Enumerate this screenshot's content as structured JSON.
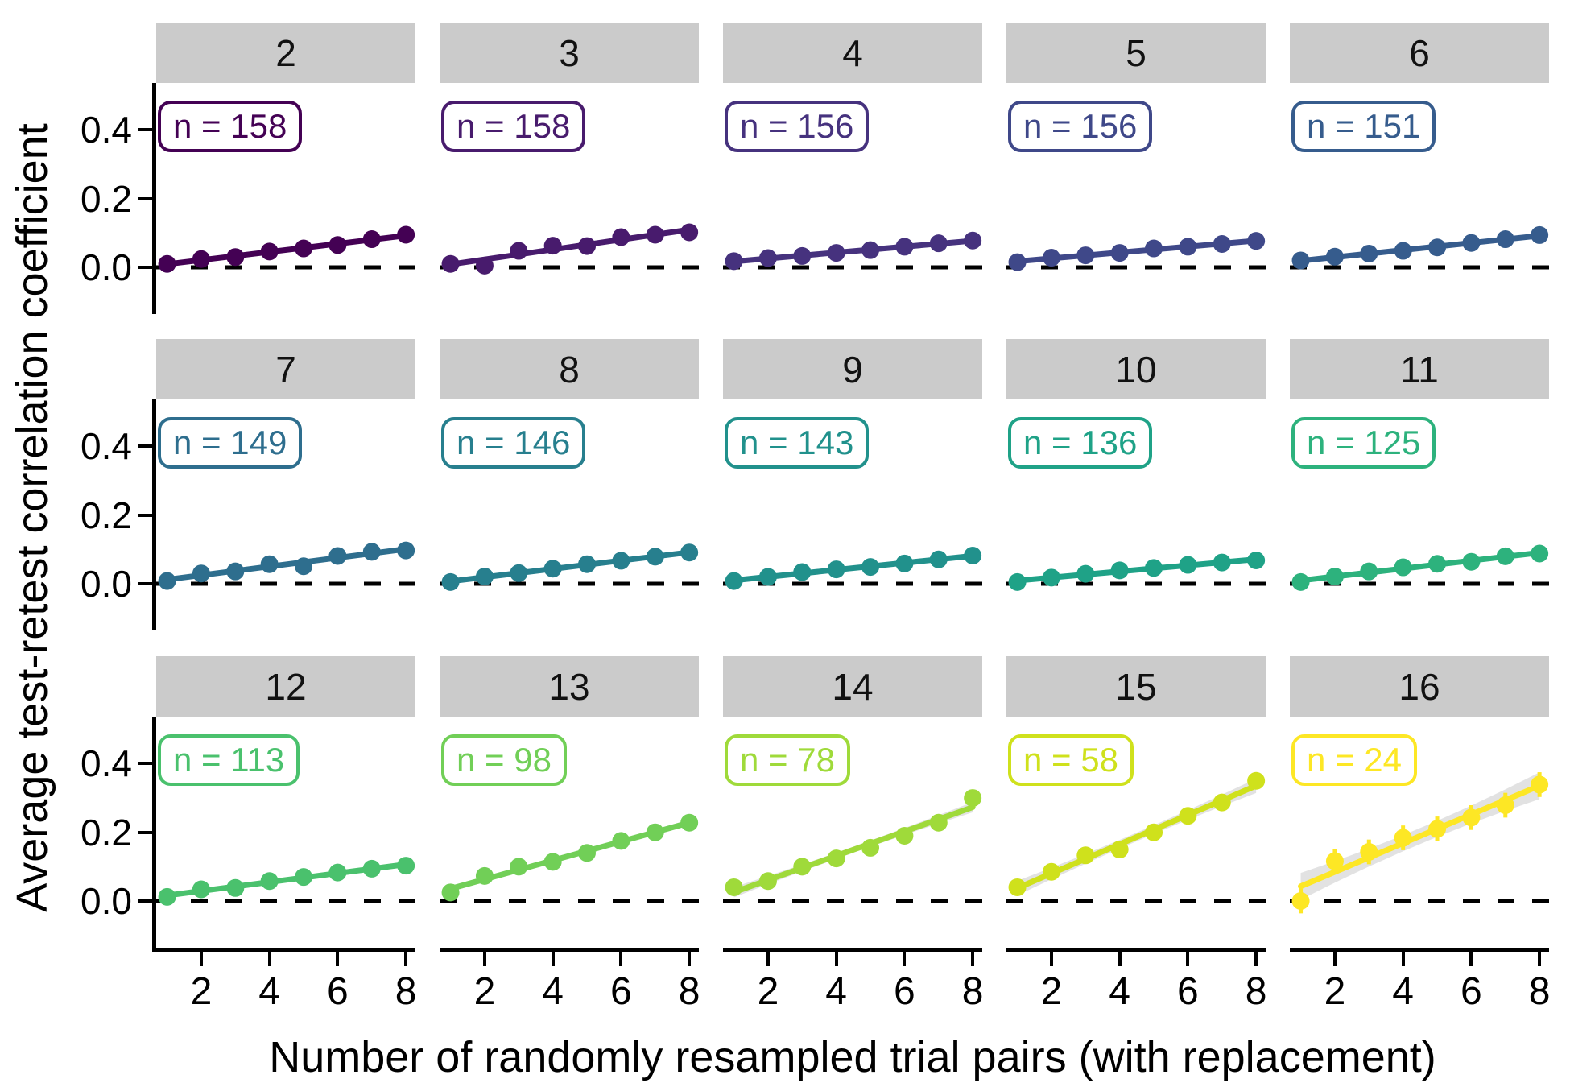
{
  "figure": {
    "y_axis_title": "Average test-retest correlation coefficient",
    "x_axis_title": "Number of randomly resampled trial pairs (with replacement)",
    "strip_bg": "#CBCBCB",
    "zero_line_color": "#000000",
    "ribbon_color": "#DBDBDB"
  },
  "chart_data": {
    "type": "scatter",
    "title": "",
    "xlabel": "Number of randomly resampled trial pairs (with replacement)",
    "ylabel": "Average test-retest correlation coefficient",
    "x": [
      1,
      2,
      3,
      4,
      5,
      6,
      7,
      8
    ],
    "x_ticks": [
      2,
      4,
      6,
      8
    ],
    "x_tick_labels": [
      "2",
      "4",
      "6",
      "8"
    ],
    "y_ticks": [
      0.0,
      0.2,
      0.4
    ],
    "y_tick_labels": [
      "0.0",
      "0.2",
      "0.4"
    ],
    "x_range": [
      0.68,
      8.28
    ],
    "y_range": [
      -0.136,
      0.537
    ],
    "grid": false,
    "zero_reference_line": 0.0,
    "panels": [
      {
        "facet": "2",
        "n": 158,
        "n_label": "n = 158",
        "color": "#440154",
        "y": [
          0.01,
          0.024,
          0.03,
          0.046,
          0.055,
          0.065,
          0.082,
          0.095
        ],
        "se": 0.005,
        "ribbon": 0
      },
      {
        "facet": "3",
        "n": 158,
        "n_label": "n = 158",
        "color": "#481B6D",
        "y": [
          0.01,
          0.005,
          0.048,
          0.063,
          0.062,
          0.088,
          0.095,
          0.102
        ],
        "se": 0.005,
        "ribbon": 0
      },
      {
        "facet": "4",
        "n": 156,
        "n_label": "n = 156",
        "color": "#46327E",
        "y": [
          0.018,
          0.027,
          0.033,
          0.042,
          0.05,
          0.06,
          0.07,
          0.078
        ],
        "se": 0.005,
        "ribbon": 0
      },
      {
        "facet": "5",
        "n": 156,
        "n_label": "n = 156",
        "color": "#3F4889",
        "y": [
          0.015,
          0.028,
          0.035,
          0.042,
          0.055,
          0.06,
          0.068,
          0.077
        ],
        "se": 0.005,
        "ribbon": 0
      },
      {
        "facet": "6",
        "n": 151,
        "n_label": "n = 151",
        "color": "#365C8D",
        "y": [
          0.02,
          0.031,
          0.04,
          0.048,
          0.058,
          0.071,
          0.082,
          0.094
        ],
        "se": 0.005,
        "ribbon": 0
      },
      {
        "facet": "7",
        "n": 149,
        "n_label": "n = 149",
        "color": "#2E6E8E",
        "y": [
          0.008,
          0.03,
          0.036,
          0.057,
          0.051,
          0.081,
          0.093,
          0.097
        ],
        "se": 0.005,
        "ribbon": 0
      },
      {
        "facet": "8",
        "n": 146,
        "n_label": "n = 146",
        "color": "#277F8E",
        "y": [
          0.005,
          0.021,
          0.031,
          0.044,
          0.057,
          0.067,
          0.079,
          0.091
        ],
        "se": 0.005,
        "ribbon": 0
      },
      {
        "facet": "9",
        "n": 143,
        "n_label": "n = 143",
        "color": "#21918C",
        "y": [
          0.008,
          0.02,
          0.034,
          0.042,
          0.049,
          0.059,
          0.071,
          0.082
        ],
        "se": 0.005,
        "ribbon": 0
      },
      {
        "facet": "10",
        "n": 136,
        "n_label": "n = 136",
        "color": "#1FA287",
        "y": [
          0.005,
          0.018,
          0.029,
          0.039,
          0.046,
          0.055,
          0.062,
          0.068
        ],
        "se": 0.005,
        "ribbon": 0
      },
      {
        "facet": "11",
        "n": 125,
        "n_label": "n = 125",
        "color": "#2DB27D",
        "y": [
          0.005,
          0.021,
          0.036,
          0.048,
          0.058,
          0.064,
          0.08,
          0.088
        ],
        "se": 0.006,
        "ribbon": 0
      },
      {
        "facet": "12",
        "n": 113,
        "n_label": "n = 113",
        "color": "#4AC16D",
        "y": [
          0.012,
          0.034,
          0.038,
          0.058,
          0.07,
          0.083,
          0.094,
          0.103
        ],
        "se": 0.006,
        "ribbon": 0.004
      },
      {
        "facet": "13",
        "n": 98,
        "n_label": "n = 98",
        "color": "#71CF57",
        "y": [
          0.025,
          0.073,
          0.1,
          0.114,
          0.14,
          0.175,
          0.2,
          0.228
        ],
        "se": 0.009,
        "ribbon": 0.006
      },
      {
        "facet": "14",
        "n": 78,
        "n_label": "n = 78",
        "color": "#9FDA3A",
        "y": [
          0.04,
          0.058,
          0.1,
          0.124,
          0.155,
          0.19,
          0.228,
          0.3
        ],
        "se": 0.012,
        "ribbon": 0.01
      },
      {
        "facet": "15",
        "n": 58,
        "n_label": "n = 58",
        "color": "#CFE11C",
        "y": [
          0.04,
          0.085,
          0.133,
          0.15,
          0.2,
          0.248,
          0.287,
          0.35
        ],
        "se": 0.016,
        "ribbon": 0.014
      },
      {
        "facet": "16",
        "n": 24,
        "n_label": "n = 24",
        "color": "#FDE725",
        "y": [
          0.0,
          0.116,
          0.143,
          0.184,
          0.21,
          0.243,
          0.279,
          0.339
        ],
        "se": 0.036,
        "ribbon": 0.026
      }
    ]
  }
}
